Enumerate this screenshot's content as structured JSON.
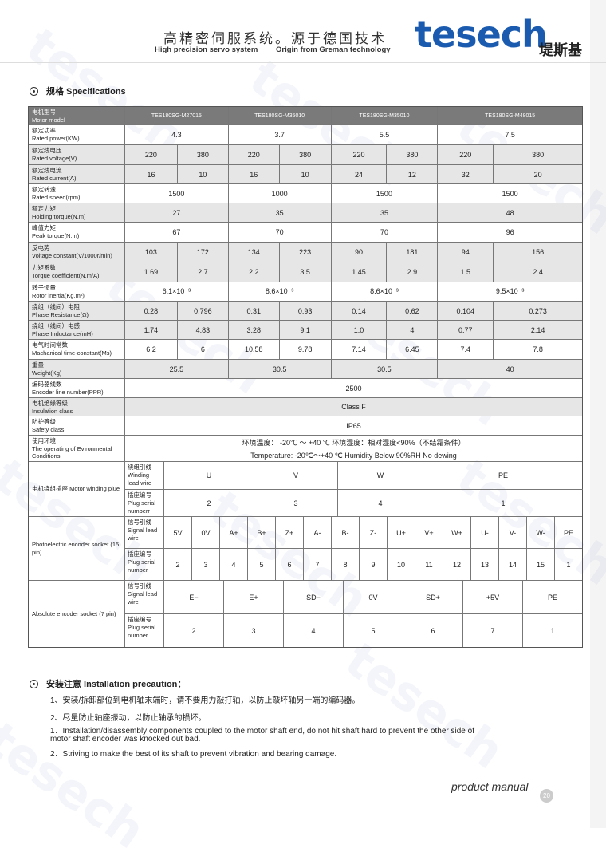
{
  "header": {
    "cn_title": "高精密伺服系统。源于德国技术",
    "en_left": "High precision servo system",
    "en_right": "Origin from Greman technology",
    "logo": "tesech",
    "logo_cn": "堤斯基",
    "brand_color": "#1a5bb0"
  },
  "watermark": "tesech",
  "spec_title": "规格 Specifications",
  "table": {
    "header": {
      "cn": "电机型号",
      "en": "Motor model",
      "models": [
        "TES180SG-M27015",
        "TES180SG-M35010",
        "TES180SG-M35010",
        "TES180SG-M48015"
      ]
    },
    "rows": [
      {
        "cn": "额定功率",
        "en": "Rated power(KW)",
        "vals": [
          "4.3",
          "3.7",
          "5.5",
          "7.5"
        ]
      },
      {
        "cn": "额定线电压",
        "en": "Rated voltage(V)",
        "vals": [
          "220",
          "380",
          "220",
          "380",
          "220",
          "380",
          "220",
          "380"
        ]
      },
      {
        "cn": "额定线电流",
        "en": "Rated current(A)",
        "vals": [
          "16",
          "10",
          "16",
          "10",
          "24",
          "12",
          "32",
          "20"
        ]
      },
      {
        "cn": "额定转速",
        "en": "Rated speed(rpm)",
        "vals": [
          "1500",
          "1000",
          "1500",
          "1500"
        ]
      },
      {
        "cn": "额定力矩",
        "en": "Holding torque(N.m)",
        "vals": [
          "27",
          "35",
          "35",
          "48"
        ]
      },
      {
        "cn": "峰值力矩",
        "en": "Peak torque(N.m)",
        "vals": [
          "67",
          "70",
          "70",
          "96"
        ]
      },
      {
        "cn": "反电势",
        "en": "Voltage constant(V/1000r/min)",
        "vals": [
          "103",
          "172",
          "134",
          "223",
          "90",
          "181",
          "94",
          "156"
        ]
      },
      {
        "cn": "力矩系数",
        "en": "Torque coefficient(N.m/A)",
        "vals": [
          "1.69",
          "2.7",
          "2.2",
          "3.5",
          "1.45",
          "2.9",
          "1.5",
          "2.4"
        ]
      },
      {
        "cn": "转子惯量",
        "en": "Rotor inertia(Kg.m²)",
        "vals": [
          "6.1×10⁻³",
          "8.6×10⁻³",
          "8.6×10⁻³",
          "9.5×10⁻³"
        ]
      },
      {
        "cn": "绕组（线间）电阻",
        "en": "Phase Resistance(Ω)",
        "vals": [
          "0.28",
          "0.796",
          "0.31",
          "0.93",
          "0.14",
          "0.62",
          "0.104",
          "0.273"
        ]
      },
      {
        "cn": "绕组（线间）电感",
        "en": "Phase Inductance(mH)",
        "vals": [
          "1.74",
          "4.83",
          "3.28",
          "9.1",
          "1.0",
          "4",
          "0.77",
          "2.14"
        ]
      },
      {
        "cn": "电气时间常数",
        "en": "Machanical time-constant(Ms)",
        "vals": [
          "6.2",
          "6",
          "10.58",
          "9.78",
          "7.14",
          "6.45",
          "7.4",
          "7.8"
        ]
      },
      {
        "cn": "重量",
        "en": "Weight(Kg)",
        "vals": [
          "25.5",
          "30.5",
          "30.5",
          "40"
        ]
      },
      {
        "cn": "编码器线数",
        "en": "Encoder line number(PPR)",
        "vals": [
          "2500"
        ]
      },
      {
        "cn": "电机绝缘等级",
        "en": "Insulation class",
        "vals": [
          "Class F"
        ]
      },
      {
        "cn": "防护等级",
        "en": "Safety class",
        "vals": [
          "IP65"
        ]
      }
    ],
    "environment": {
      "cn": "使用环境",
      "en": "The operating of Evironmental Conditions",
      "line1": "环境温度： -20℃ ～ +40 ℃      环境湿度：相对湿度<90%（不结霜条件）",
      "line2": "Temperature: -20℃～+40 ℃      Humidity   Below 90%RH No dewing"
    },
    "winding": {
      "label": "电机绕组插座 Motor winding plue",
      "sig_label": "绕组引线 Winding lead wire",
      "num_label": "插座编号 Plug serial numberr",
      "signals": [
        "U",
        "V",
        "W",
        "PE"
      ],
      "numbers": [
        "2",
        "3",
        "4",
        "1"
      ]
    },
    "photo": {
      "label": "Photoelectric encoder socket (15 pin)",
      "sig_label": "信号引线 Signal lead wire",
      "num_label": "插座编号 Plug serial number",
      "signals": [
        "5V",
        "0V",
        "A+",
        "B+",
        "Z+",
        "A-",
        "B-",
        "Z-",
        "U+",
        "V+",
        "W+",
        "U-",
        "V-",
        "W-",
        "PE"
      ],
      "numbers": [
        "2",
        "3",
        "4",
        "5",
        "6",
        "7",
        "8",
        "9",
        "10",
        "11",
        "12",
        "13",
        "14",
        "15",
        "1"
      ]
    },
    "absolute": {
      "label": "Absolute encoder socket (7 pin)",
      "sig_label": "信号引线 Signal lead wire",
      "num_label": "插座编号 Plug serial number",
      "signals": [
        "E−",
        "E+",
        "SD−",
        "0V",
        "SD+",
        "+5V",
        "PE"
      ],
      "numbers": [
        "2",
        "3",
        "4",
        "5",
        "6",
        "7",
        "1"
      ]
    }
  },
  "install": {
    "title": "安装注意 Installation precaution：",
    "lines": [
      "1、安装/拆卸部位到电机轴末端时，请不要用力敲打轴，以防止敲坏轴另一端的编码器。",
      "2、尽量防止轴座振动，以防止轴承的损坏。",
      "1．Installation/disassembly components coupled to the motor shaft end, do not hit shaft hard to prevent the other side of",
      "motor shaft encoder was knocked out bad.",
      "2．Striving to make the best of its shaft to prevent vibration and bearing damage."
    ]
  },
  "footer": {
    "label": "product manual",
    "page": "20"
  }
}
